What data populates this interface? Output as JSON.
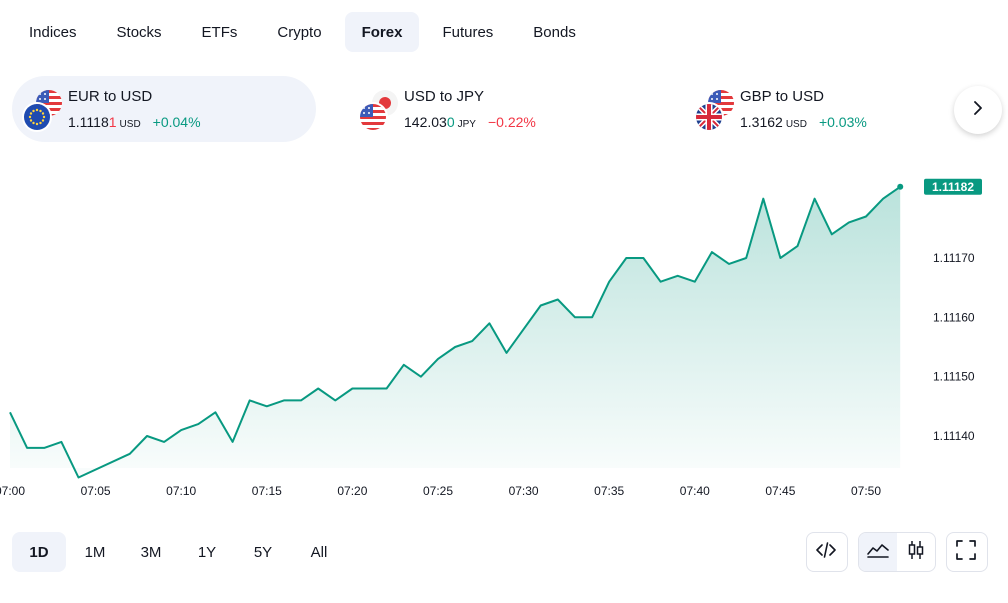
{
  "tabs": [
    {
      "label": "Indices"
    },
    {
      "label": "Stocks"
    },
    {
      "label": "ETFs"
    },
    {
      "label": "Crypto"
    },
    {
      "label": "Forex"
    },
    {
      "label": "Futures"
    },
    {
      "label": "Bonds"
    }
  ],
  "active_tab": "Forex",
  "pairs": [
    {
      "name": "EUR to USD",
      "price_main": "1.1118",
      "price_highlight": "1",
      "unit": "USD",
      "change": "+0.04%",
      "direction": "up",
      "flags": [
        "us-flag-icon",
        "eu-flag-icon"
      ]
    },
    {
      "name": "USD to JPY",
      "price_main": "142.03",
      "price_highlight": "0",
      "unit": "JPY",
      "change": "−0.22%",
      "direction": "down",
      "flags": [
        "jp-flag-icon",
        "us-flag-icon"
      ]
    },
    {
      "name": "GBP to USD",
      "price_main": "1.3162",
      "price_highlight": "",
      "unit": "USD",
      "change": "+0.03%",
      "direction": "up",
      "flags": [
        "us-flag-icon",
        "uk-flag-icon"
      ]
    }
  ],
  "ranges": [
    {
      "label": "1D"
    },
    {
      "label": "1M"
    },
    {
      "label": "3M"
    },
    {
      "label": "1Y"
    },
    {
      "label": "5Y"
    },
    {
      "label": "All"
    }
  ],
  "active_range": "1D",
  "tools": {
    "embed": "code-icon",
    "area": "area-chart-icon",
    "candles": "candlestick-icon",
    "fullscreen": "fullscreen-icon"
  },
  "colors": {
    "accent": "#089981",
    "down": "#f23645",
    "active_bg": "#f0f3fa"
  },
  "chart_data": {
    "type": "area",
    "title": "",
    "xlabel": "",
    "ylabel": "",
    "x_ticks": [
      "07:00",
      "07:05",
      "07:10",
      "07:15",
      "07:20",
      "07:25",
      "07:30",
      "07:35",
      "07:40",
      "07:45",
      "07:50"
    ],
    "y_ticks": [
      "1.11140",
      "1.11150",
      "1.11160",
      "1.11170"
    ],
    "ylim": [
      1.11135,
      1.11187
    ],
    "last_value_label": "1.11182",
    "grid": false,
    "series": [
      {
        "x": [
          "07:00",
          "07:01",
          "07:02",
          "07:03",
          "07:04",
          "07:07",
          "07:08",
          "07:09",
          "07:10",
          "07:11",
          "07:12",
          "07:13",
          "07:14",
          "07:15",
          "07:16",
          "07:17",
          "07:18",
          "07:19",
          "07:20",
          "07:21",
          "07:22",
          "07:23",
          "07:24",
          "07:25",
          "07:26",
          "07:27",
          "07:28",
          "07:29",
          "07:30",
          "07:31",
          "07:32",
          "07:33",
          "07:34",
          "07:35",
          "07:36",
          "07:37",
          "07:38",
          "07:39",
          "07:40",
          "07:41",
          "07:42",
          "07:43",
          "07:44",
          "07:45",
          "07:46",
          "07:47",
          "07:48",
          "07:49",
          "07:50",
          "07:51",
          "07:52"
        ],
        "values": [
          1.11144,
          1.11138,
          1.11138,
          1.11139,
          1.11133,
          1.11137,
          1.1114,
          1.11139,
          1.11141,
          1.11142,
          1.11144,
          1.11139,
          1.11146,
          1.11145,
          1.11146,
          1.11146,
          1.11148,
          1.11146,
          1.11148,
          1.11148,
          1.11148,
          1.11152,
          1.1115,
          1.11153,
          1.11155,
          1.11156,
          1.11159,
          1.11154,
          1.11158,
          1.11162,
          1.11163,
          1.1116,
          1.1116,
          1.11166,
          1.1117,
          1.1117,
          1.11166,
          1.11167,
          1.11166,
          1.11171,
          1.11169,
          1.1117,
          1.1118,
          1.1117,
          1.11172,
          1.1118,
          1.11174,
          1.11176,
          1.11177,
          1.1118,
          1.11182
        ]
      }
    ]
  }
}
